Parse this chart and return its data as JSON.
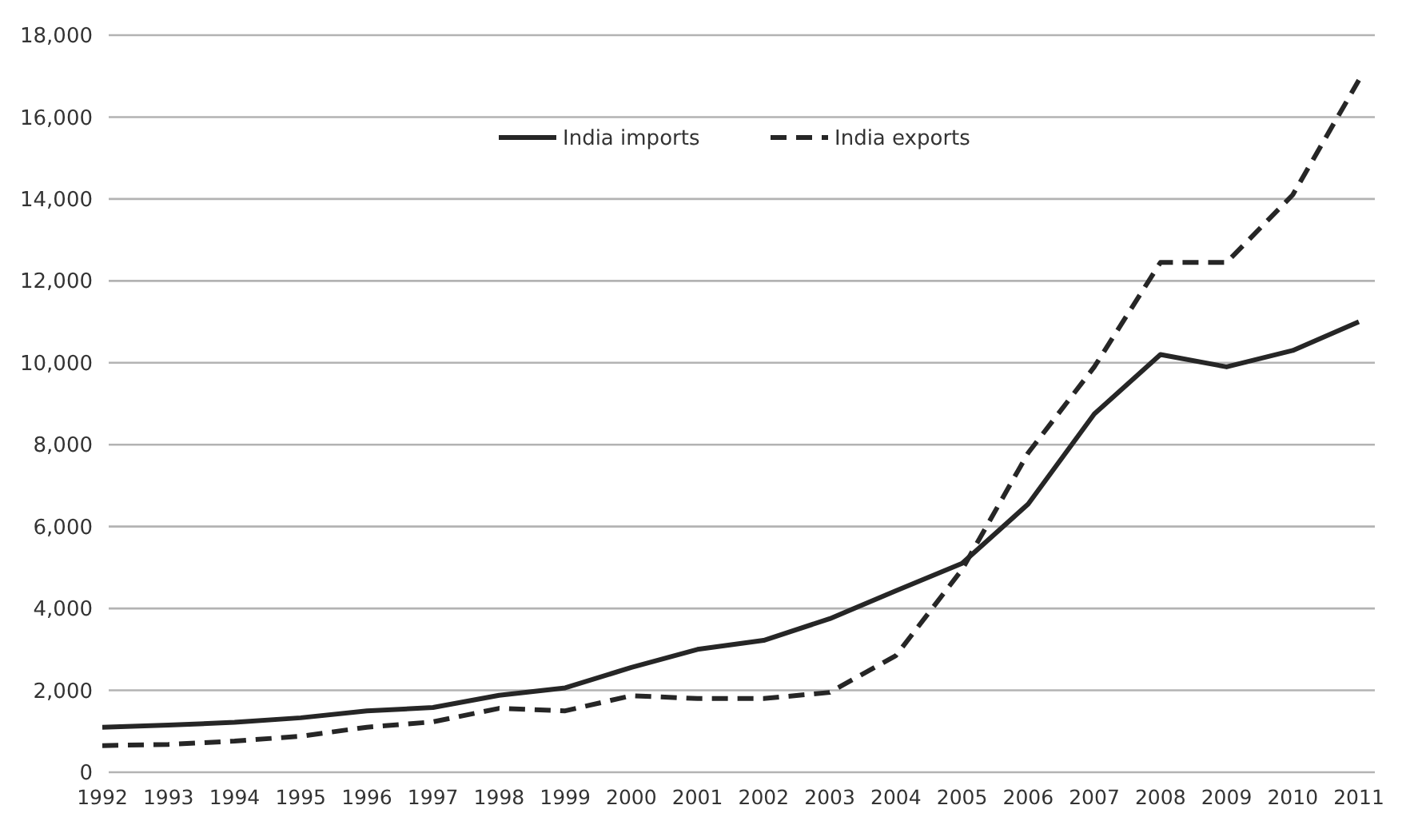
{
  "chart_data": {
    "type": "line",
    "categories": [
      "1992",
      "1993",
      "1994",
      "1995",
      "1996",
      "1997",
      "1998",
      "1999",
      "2000",
      "2001",
      "2002",
      "2003",
      "2004",
      "2005",
      "2006",
      "2007",
      "2008",
      "2009",
      "2010",
      "2011"
    ],
    "series": [
      {
        "name": "India imports",
        "color": "#262626",
        "line_style": "solid",
        "values": [
          1100,
          1150,
          1220,
          1330,
          1500,
          1580,
          1880,
          2060,
          2560,
          3000,
          3220,
          3750,
          4430,
          5100,
          6550,
          8750,
          10200,
          9900,
          10300,
          11000
        ]
      },
      {
        "name": "India exports",
        "color": "#262626",
        "line_style": "dashed",
        "values": [
          650,
          680,
          760,
          880,
          1100,
          1230,
          1560,
          1500,
          1870,
          1800,
          1800,
          1950,
          2850,
          4950,
          7800,
          9900,
          12450,
          12450,
          14100,
          16900
        ]
      }
    ],
    "ylim": [
      0,
      18000
    ],
    "yticks": [
      {
        "value": 0,
        "label": "0"
      },
      {
        "value": 2000,
        "label": "2,000"
      },
      {
        "value": 4000,
        "label": "4,000"
      },
      {
        "value": 6000,
        "label": "6,000"
      },
      {
        "value": 8000,
        "label": "8,000"
      },
      {
        "value": 10000,
        "label": "10,000"
      },
      {
        "value": 12000,
        "label": "12,000"
      },
      {
        "value": 14000,
        "label": "14,000"
      },
      {
        "value": 16000,
        "label": "16,000"
      },
      {
        "value": 18000,
        "label": "18,000"
      }
    ],
    "grid": "y",
    "legend": "top",
    "marker": "none"
  }
}
